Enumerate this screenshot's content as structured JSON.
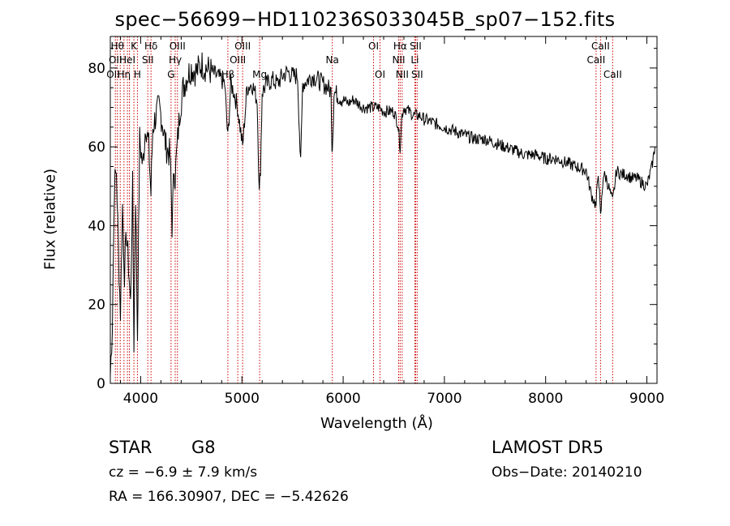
{
  "chart_data": {
    "type": "line",
    "title": "spec−56699−HD110236S033045B_sp07−152.fits",
    "xlabel": "Wavelength (Å)",
    "ylabel": "Flux (relative)",
    "xlim": [
      3700,
      9100
    ],
    "ylim": [
      0,
      88
    ],
    "xticks": [
      4000,
      5000,
      6000,
      7000,
      8000,
      9000
    ],
    "yticks": [
      0,
      20,
      40,
      60,
      80
    ],
    "series": [
      {
        "x": [
          3700,
          3720,
          3740,
          3760,
          3780,
          3800,
          3820,
          3840,
          3860,
          3880,
          3900,
          3920,
          3933,
          3950,
          3968,
          3990,
          4020,
          4050,
          4080,
          4101,
          4120,
          4150,
          4180,
          4210,
          4250,
          4290,
          4300,
          4310,
          4330,
          4340,
          4360,
          4390,
          4420,
          4460,
          4500,
          4550,
          4600,
          4650,
          4700,
          4750,
          4800,
          4830,
          4861,
          4890,
          4920,
          4957,
          5007,
          5050,
          5100,
          5150,
          5172,
          5184,
          5200,
          5250,
          5300,
          5350,
          5400,
          5450,
          5500,
          5550,
          5580,
          5600,
          5650,
          5700,
          5750,
          5800,
          5850,
          5880,
          5890,
          5896,
          5910,
          5950,
          6000,
          6050,
          6100,
          6150,
          6200,
          6250,
          6300,
          6350,
          6400,
          6450,
          6500,
          6540,
          6563,
          6580,
          6600,
          6650,
          6700,
          6750,
          6800,
          6900,
          7000,
          7100,
          7200,
          7300,
          7400,
          7500,
          7600,
          7700,
          7800,
          7900,
          8000,
          8100,
          8200,
          8300,
          8400,
          8450,
          8498,
          8520,
          8542,
          8570,
          8600,
          8662,
          8700,
          8750,
          8800,
          8850,
          8900,
          8950,
          9000,
          9050,
          9080
        ],
        "y": [
          2,
          15,
          50,
          54,
          34,
          18,
          45,
          28,
          38,
          30,
          20,
          50,
          10,
          48,
          12,
          62,
          55,
          66,
          60,
          48,
          65,
          68,
          70,
          67,
          60,
          58,
          50,
          40,
          55,
          52,
          60,
          70,
          75,
          78,
          80,
          79,
          81,
          80,
          79,
          78,
          77,
          76,
          62,
          76,
          74,
          70,
          60,
          75,
          76,
          72,
          48,
          55,
          74,
          76,
          77,
          76,
          78,
          79,
          78,
          78,
          55,
          76,
          77,
          78,
          77,
          76,
          75,
          74,
          60,
          62,
          74,
          73,
          72,
          71,
          72,
          71,
          70,
          70,
          70,
          70,
          69,
          69,
          69,
          66,
          60,
          68,
          70,
          69,
          68,
          68,
          67,
          66,
          65,
          64,
          63,
          62,
          62,
          61,
          60,
          59,
          58,
          58,
          57,
          57,
          56,
          55,
          54,
          48,
          45,
          54,
          42,
          53,
          52,
          46,
          54,
          53,
          53,
          52,
          52,
          51,
          50,
          55,
          60
        ]
      }
    ],
    "lines": [
      {
        "x": 3750,
        "names": [
          "OII"
        ]
      },
      {
        "x": 3770,
        "names": [
          "Hθ"
        ]
      },
      {
        "x": 3798,
        "names": [
          "OII"
        ]
      },
      {
        "x": 3835,
        "names": [
          "Hη"
        ]
      },
      {
        "x": 3869,
        "names": [
          "HeI"
        ]
      },
      {
        "x": 3889,
        "names": [
          "H"
        ]
      },
      {
        "x": 3933,
        "names": [
          "K"
        ]
      },
      {
        "x": 3968,
        "names": [
          "H"
        ]
      },
      {
        "x": 4070,
        "names": [
          "SII"
        ]
      },
      {
        "x": 4102,
        "names": [
          "Hδ"
        ]
      },
      {
        "x": 4300,
        "names": [
          "G"
        ]
      },
      {
        "x": 4341,
        "names": [
          "Hγ"
        ]
      },
      {
        "x": 4363,
        "names": [
          "OIII"
        ]
      },
      {
        "x": 4861,
        "names": [
          "Hβ"
        ]
      },
      {
        "x": 4959,
        "names": [
          "OIII"
        ]
      },
      {
        "x": 5007,
        "names": [
          "OIII"
        ]
      },
      {
        "x": 5175,
        "names": [
          "Mg"
        ]
      },
      {
        "x": 5893,
        "names": [
          "Na"
        ]
      },
      {
        "x": 6300,
        "names": [
          "OI"
        ]
      },
      {
        "x": 6364,
        "names": [
          "OI"
        ]
      },
      {
        "x": 6548,
        "names": [
          "NII"
        ]
      },
      {
        "x": 6563,
        "names": [
          "Hα"
        ]
      },
      {
        "x": 6583,
        "names": [
          "NII"
        ]
      },
      {
        "x": 6708,
        "names": [
          "Li"
        ]
      },
      {
        "x": 6716,
        "names": [
          "SII"
        ]
      },
      {
        "x": 6731,
        "names": [
          "SII"
        ]
      },
      {
        "x": 8498,
        "names": [
          "CaII"
        ]
      },
      {
        "x": 8542,
        "names": [
          "CaII"
        ]
      },
      {
        "x": 8662,
        "names": [
          "CaII"
        ]
      }
    ],
    "labels": [
      {
        "text": "Hθ",
        "x": 3770,
        "row": 0
      },
      {
        "text": "K",
        "x": 3933,
        "row": 0
      },
      {
        "text": "Hδ",
        "x": 4102,
        "row": 0
      },
      {
        "text": "OIII",
        "x": 4363,
        "row": 0
      },
      {
        "text": "OIII",
        "x": 5007,
        "row": 0
      },
      {
        "text": "OI",
        "x": 6300,
        "row": 0
      },
      {
        "text": "Hα",
        "x": 6563,
        "row": 0
      },
      {
        "text": "SII",
        "x": 6716,
        "row": 0
      },
      {
        "text": "CaII",
        "x": 8542,
        "row": 0
      },
      {
        "text": "OII",
        "x": 3750,
        "row": 1
      },
      {
        "text": "HeI",
        "x": 3869,
        "row": 1
      },
      {
        "text": "SII",
        "x": 4070,
        "row": 1
      },
      {
        "text": "Hγ",
        "x": 4341,
        "row": 1
      },
      {
        "text": "OIII",
        "x": 4959,
        "row": 1
      },
      {
        "text": "Na",
        "x": 5893,
        "row": 1
      },
      {
        "text": "NII",
        "x": 6548,
        "row": 1
      },
      {
        "text": "Li",
        "x": 6708,
        "row": 1
      },
      {
        "text": "CaII",
        "x": 8498,
        "row": 1
      },
      {
        "text": "OII",
        "x": 3728,
        "row": 2
      },
      {
        "text": "Hη",
        "x": 3835,
        "row": 2
      },
      {
        "text": "H",
        "x": 3968,
        "row": 2
      },
      {
        "text": "G",
        "x": 4300,
        "row": 2
      },
      {
        "text": "Hβ",
        "x": 4861,
        "row": 2
      },
      {
        "text": "Mg",
        "x": 5175,
        "row": 2
      },
      {
        "text": "OI",
        "x": 6364,
        "row": 2
      },
      {
        "text": "NII",
        "x": 6583,
        "row": 2
      },
      {
        "text": "SII",
        "x": 6731,
        "row": 2
      },
      {
        "text": "CaII",
        "x": 8662,
        "row": 2
      }
    ]
  },
  "info": {
    "class": "STAR",
    "subclass": "G8",
    "survey": "LAMOST DR5",
    "cz": "cz = −6.9 ± 7.9 km/s",
    "obs_date": "Obs−Date: 20140210",
    "coords": "RA = 166.30907, DEC =  −5.42626"
  },
  "colors": {
    "line_marker": "#cc0000",
    "spectrum": "#000000"
  }
}
